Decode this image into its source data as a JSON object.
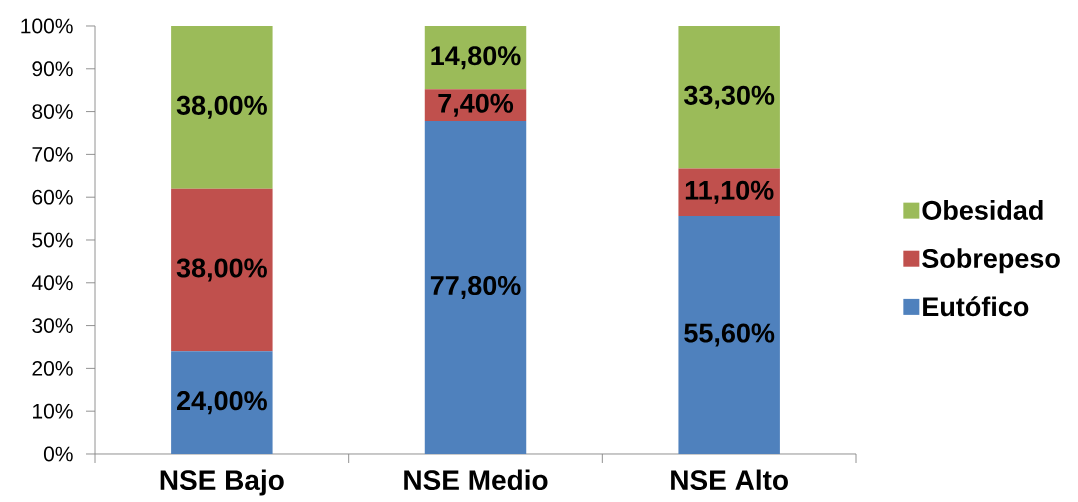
{
  "chart_data": {
    "type": "bar",
    "stacked": true,
    "categories": [
      "NSE Bajo",
      "NSE Medio",
      "NSE Alto"
    ],
    "series": [
      {
        "name": "Eutófico",
        "color": "#4f81bd",
        "values": [
          24.0,
          77.8,
          55.6
        ],
        "value_labels": [
          "24,00%",
          "77,80%",
          "55,60%"
        ]
      },
      {
        "name": "Sobrepeso",
        "color": "#c0504d",
        "values": [
          38.0,
          7.4,
          11.1
        ],
        "value_labels": [
          "38,00%",
          "7,40%",
          "11,10%"
        ]
      },
      {
        "name": "Obesidad",
        "color": "#9bbb59",
        "values": [
          38.0,
          14.8,
          33.3
        ],
        "value_labels": [
          "38,00%",
          "14,80%",
          "33,30%"
        ]
      }
    ],
    "ylim": [
      0,
      100
    ],
    "yticks": [
      {
        "value": 0,
        "label": "0%"
      },
      {
        "value": 10,
        "label": "10%"
      },
      {
        "value": 20,
        "label": "20%"
      },
      {
        "value": 30,
        "label": "30%"
      },
      {
        "value": 40,
        "label": "40%"
      },
      {
        "value": 50,
        "label": "50%"
      },
      {
        "value": 60,
        "label": "60%"
      },
      {
        "value": 70,
        "label": "70%"
      },
      {
        "value": 80,
        "label": "80%"
      },
      {
        "value": 90,
        "label": "90%"
      },
      {
        "value": 100,
        "label": "100%"
      }
    ],
    "legend": "right"
  }
}
